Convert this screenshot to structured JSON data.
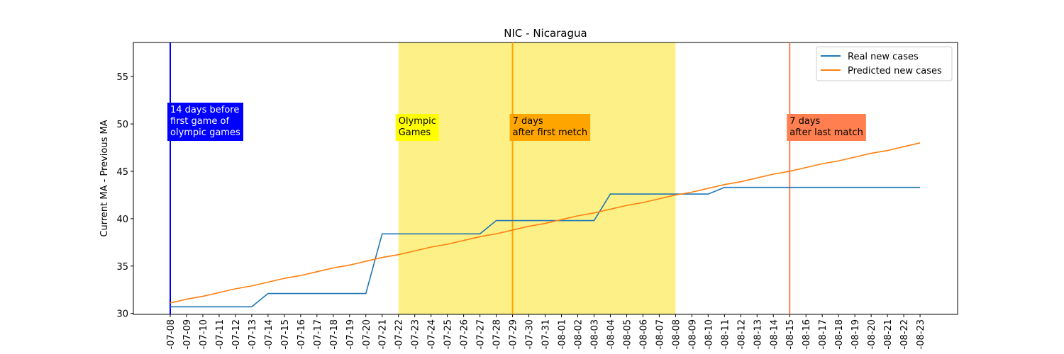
{
  "chart_data": {
    "type": "line",
    "title": "NIC - Nicaragua",
    "y_label": "Current MA - Previous MA",
    "categories": [
      "-07-08",
      "-07-09",
      "-07-10",
      "-07-11",
      "-07-12",
      "-07-13",
      "-07-14",
      "-07-15",
      "-07-16",
      "-07-17",
      "-07-18",
      "-07-19",
      "-07-20",
      "-07-21",
      "-07-22",
      "-07-23",
      "-07-24",
      "-07-25",
      "-07-26",
      "-07-27",
      "-07-28",
      "-07-29",
      "-07-30",
      "-07-31",
      "-08-01",
      "-08-02",
      "-08-03",
      "-08-04",
      "-08-05",
      "-08-06",
      "-08-07",
      "-08-08",
      "-08-09",
      "-08-10",
      "-08-11",
      "-08-12",
      "-08-13",
      "-08-14",
      "-08-15",
      "-08-16",
      "-08-17",
      "-08-18",
      "-08-19",
      "-08-20",
      "-08-21",
      "-08-22",
      "-08-23"
    ],
    "series": [
      {
        "name": "Real new cases",
        "color": "#1f77b4",
        "values": [
          30.7,
          30.7,
          30.7,
          30.7,
          30.7,
          30.7,
          32.1,
          32.1,
          32.1,
          32.1,
          32.1,
          32.1,
          32.1,
          38.4,
          38.4,
          38.4,
          38.4,
          38.4,
          38.4,
          38.4,
          39.8,
          39.8,
          39.8,
          39.8,
          39.8,
          39.8,
          39.8,
          42.6,
          42.6,
          42.6,
          42.6,
          42.6,
          42.6,
          42.6,
          43.3,
          43.3,
          43.3,
          43.3,
          43.3,
          43.3,
          43.3,
          43.3,
          43.3,
          43.3,
          43.3,
          43.3,
          43.3
        ]
      },
      {
        "name": "Predicted new cases",
        "color": "#ff7f0e",
        "values": [
          31.1,
          31.5,
          31.8,
          32.2,
          32.6,
          32.9,
          33.3,
          33.7,
          34.0,
          34.4,
          34.8,
          35.1,
          35.5,
          35.9,
          36.2,
          36.6,
          37.0,
          37.3,
          37.7,
          38.1,
          38.4,
          38.8,
          39.2,
          39.5,
          39.9,
          40.3,
          40.6,
          41.0,
          41.4,
          41.7,
          42.1,
          42.5,
          42.8,
          43.2,
          43.6,
          43.9,
          44.3,
          44.7,
          45.0,
          45.4,
          45.8,
          46.1,
          46.5,
          46.9,
          47.2,
          47.6,
          48.0
        ]
      }
    ],
    "ylim": [
      29.9,
      58.6
    ],
    "yticks": [
      30,
      35,
      40,
      45,
      50,
      55
    ],
    "legend": "upper right",
    "span": {
      "from": "-07-22",
      "to": "-08-08",
      "color": "#fdf086",
      "label": [
        "Olympic",
        "Games"
      ],
      "label_bg": "#ffff00",
      "label_color": "#000000"
    },
    "vlines": [
      {
        "x": "-07-08",
        "color": "#0000ff",
        "label": [
          "14 days before",
          "first game of",
          "olympic games"
        ],
        "label_bg": "#0000ff",
        "label_color": "#ffffff"
      },
      {
        "x": "-07-29",
        "color": "#ffa500",
        "label": [
          "7 days",
          "after first metch"
        ],
        "label_bg": "#ffa500",
        "label_color": "#000000"
      },
      {
        "x": "-08-15",
        "color": "#ff7f50",
        "label": [
          "7 days",
          "after last match"
        ],
        "label_bg": "#ff7f50",
        "label_color": "#000000"
      }
    ]
  }
}
